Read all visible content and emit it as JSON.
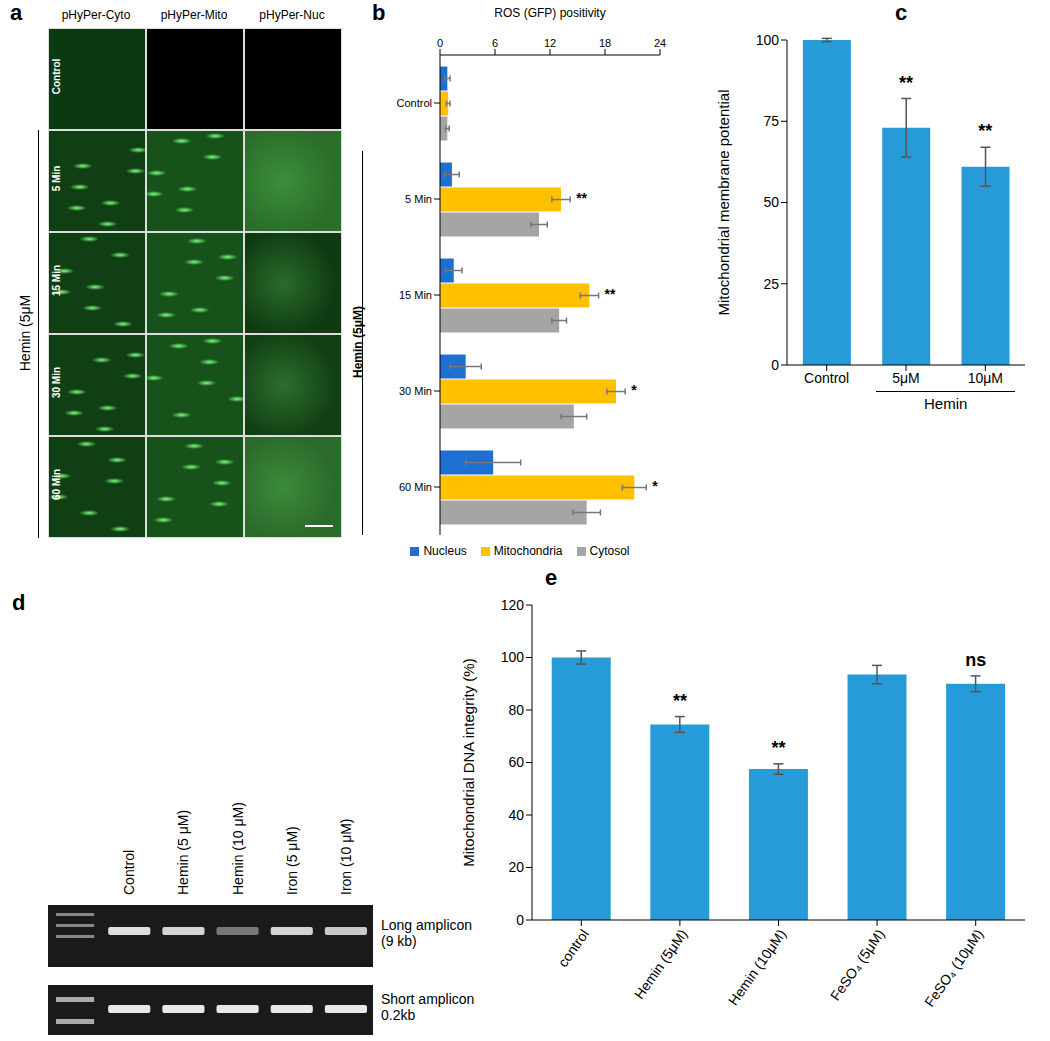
{
  "chart_data": [
    {
      "panel": "b",
      "type": "bar",
      "orientation": "horizontal",
      "x_label": "ROS (GFP) positivity",
      "categories": [
        "Control",
        "5 Min",
        "15 Min",
        "30 Min",
        "60 Min"
      ],
      "series": [
        {
          "name": "Nucleus",
          "color": "#1f6fd0",
          "values": [
            0.8,
            1.3,
            1.5,
            2.8,
            5.8
          ],
          "errors": [
            0.3,
            0.8,
            0.9,
            1.7,
            3.0
          ]
        },
        {
          "name": "Mitochondria",
          "color": "#ffc000",
          "values": [
            0.9,
            13.2,
            16.3,
            19.2,
            21.2
          ],
          "errors": [
            0.2,
            1.0,
            1.0,
            1.0,
            1.3
          ]
        },
        {
          "name": "Cytosol",
          "color": "#a5a5a5",
          "values": [
            0.8,
            10.8,
            13.0,
            14.6,
            16.0
          ],
          "errors": [
            0.2,
            0.9,
            0.8,
            1.4,
            1.5
          ]
        }
      ],
      "xlim": [
        0,
        24
      ],
      "xticks": [
        0,
        6,
        12,
        18,
        24
      ],
      "legend": "bottom",
      "group": {
        "label": "Hemin (5μM)",
        "members": [
          "5 Min",
          "15 Min",
          "30 Min",
          "60 Min"
        ]
      },
      "significance": [
        null,
        "**",
        "**",
        "*",
        "*"
      ]
    },
    {
      "panel": "c",
      "type": "bar",
      "y_label": "Mitochondrial membrane potential",
      "categories": [
        "Control",
        "5μM",
        "10μM"
      ],
      "values": [
        100,
        73,
        61
      ],
      "errors": [
        0.5,
        9,
        6
      ],
      "color": "#279ad8",
      "ylim": [
        0,
        100
      ],
      "yticks": [
        0,
        25,
        50,
        75,
        100
      ],
      "group": {
        "label": "Hemin",
        "members": [
          "5μM",
          "10μM"
        ]
      },
      "significance": [
        null,
        "**",
        "**"
      ]
    },
    {
      "panel": "e",
      "type": "bar",
      "y_label": "Mitochondrial DNA integrity (%)",
      "categories": [
        "control",
        "Hemin (5μM)",
        "Hemin (10μM)",
        "FeSO₄ (5μM)",
        "FeSO₄ (10μM)"
      ],
      "values": [
        100,
        74.5,
        57.5,
        93.5,
        90
      ],
      "errors": [
        2.5,
        3,
        2,
        3.5,
        3
      ],
      "color": "#279ad8",
      "ylim": [
        0,
        120
      ],
      "yticks": [
        0,
        20,
        40,
        60,
        80,
        100,
        120
      ],
      "significance": [
        null,
        "**",
        "**",
        null,
        "ns"
      ]
    }
  ],
  "image_panels": {
    "a": {
      "panel": "a",
      "columns": [
        "pHyPer-Cyto",
        "pHyPer-Mito",
        "pHyPer-Nuc"
      ],
      "rows": [
        "Control",
        "5 Min",
        "15 Min",
        "30 Min",
        "60 Min"
      ],
      "group": {
        "label": "Hemin (5μM",
        "members": [
          "5 Min",
          "15 Min",
          "30 Min",
          "60 Min"
        ]
      }
    },
    "d": {
      "panel": "d",
      "lanes": [
        "Control",
        "Hemin (5 μM)",
        "Hemin (10 μM)",
        "Iron (5 μM)",
        "Iron (10 μM)"
      ],
      "bands": [
        "Long amplicon (9 kb)",
        "Short amplicon 0.2kb"
      ]
    }
  }
}
